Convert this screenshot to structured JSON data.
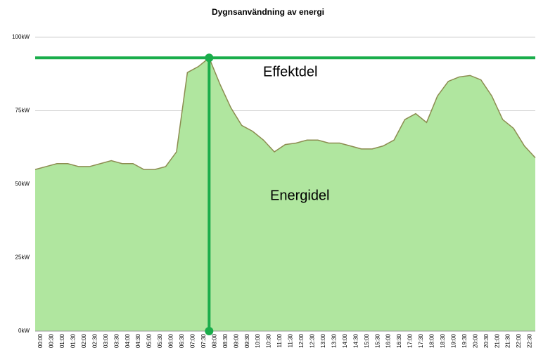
{
  "chart_data": {
    "type": "area",
    "title": "Dygnsanvändning av energi",
    "categories": [
      "00:00",
      "00:30",
      "01:00",
      "01:30",
      "02:00",
      "02:30",
      "03:00",
      "03:30",
      "04:00",
      "04:30",
      "05:00",
      "05:30",
      "06:00",
      "06:30",
      "07:00",
      "07:30",
      "08:00",
      "08:30",
      "09:00",
      "09:30",
      "10:00",
      "10:30",
      "11:00",
      "11:30",
      "12:00",
      "12:30",
      "13:00",
      "13:30",
      "14:00",
      "14:30",
      "15:00",
      "15:30",
      "16:00",
      "16:30",
      "17:00",
      "17:30",
      "18:00",
      "18:30",
      "19:00",
      "19:30",
      "20:00",
      "20:30",
      "21:00",
      "21:30",
      "22:00",
      "22:30",
      "23:00"
    ],
    "values": [
      55,
      56,
      57,
      57,
      56,
      56,
      57,
      58,
      57,
      57,
      55,
      55,
      56,
      61,
      88,
      90,
      93,
      84,
      76,
      70,
      68,
      65,
      61,
      63.5,
      64,
      65,
      65,
      64,
      64,
      63,
      62,
      62,
      63,
      65,
      72,
      74,
      71,
      80,
      85,
      86.5,
      87,
      85.5,
      80,
      72,
      69,
      63,
      59
    ],
    "color": "#b0e69f",
    "line_color": "#8c8c50",
    "ylim": [
      0,
      100
    ],
    "yticks": [
      {
        "value": 0,
        "label": "0kW"
      },
      {
        "value": 25,
        "label": "25kW"
      },
      {
        "value": 50,
        "label": "50kW"
      },
      {
        "value": 75,
        "label": "75kW"
      },
      {
        "value": 100,
        "label": "100kW"
      }
    ],
    "grid": true,
    "reference_color": "#1aad4b",
    "horizontal_line": 93,
    "vertical_line": "08:00",
    "annotations": [
      "Effektdel",
      "Energidel"
    ]
  }
}
